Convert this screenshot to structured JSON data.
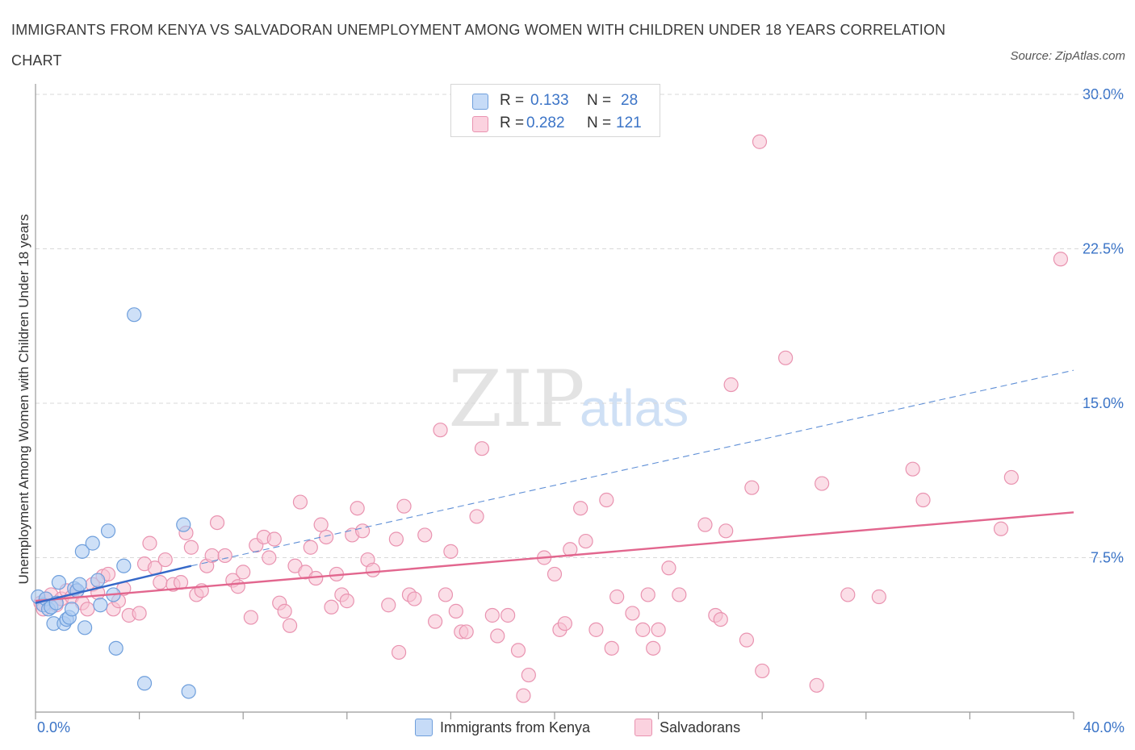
{
  "title": "IMMIGRANTS FROM KENYA VS SALVADORAN UNEMPLOYMENT AMONG WOMEN WITH CHILDREN UNDER 18 YEARS CORRELATION CHART",
  "source": "Source: ZipAtlas.com",
  "watermark": {
    "zip": "ZIP",
    "atlas": "atlas"
  },
  "legend_top": [
    {
      "r_label": "R =",
      "r_value": "0.133",
      "n_label": "N =",
      "n_value": "28"
    },
    {
      "r_label": "R =",
      "r_value": "0.282",
      "n_label": "N =",
      "n_value": "121"
    }
  ],
  "legend_bottom": [
    "Immigrants from Kenya",
    "Salvadorans"
  ],
  "colors": {
    "kenya_fill": "#aecbf2",
    "kenya_stroke": "#6f9fdc",
    "kenya_line": "#3568c8",
    "salv_fill": "#f8c2d3",
    "salv_stroke": "#e993b0",
    "salv_line": "#e2668e",
    "tick_text": "#3b74c7",
    "grid": "#d9d9d9"
  },
  "chart_data": {
    "type": "scatter",
    "title": "IMMIGRANTS FROM KENYA VS SALVADORAN UNEMPLOYMENT AMONG WOMEN WITH CHILDREN UNDER 18 YEARS CORRELATION CHART",
    "xlabel": "",
    "ylabel": "Unemployment Among Women with Children Under 18 years",
    "xlim": [
      0,
      40
    ],
    "ylim": [
      0,
      30
    ],
    "x_tick_labels": [
      "0.0%",
      "40.0%"
    ],
    "y_ticks": [
      7.5,
      15.0,
      22.5,
      30.0
    ],
    "y_tick_labels": [
      "7.5%",
      "15.0%",
      "22.5%",
      "30.0%"
    ],
    "grid": "horizontal dashed",
    "legend_position": "top-center and bottom",
    "series": [
      {
        "name": "Immigrants from Kenya",
        "R": 0.133,
        "N": 28,
        "trend": {
          "x": [
            0,
            6
          ],
          "y": [
            5.3,
            7.1
          ],
          "extended_x": [
            6,
            40
          ],
          "extended_y": [
            7.1,
            16.6
          ]
        },
        "points": [
          [
            0.1,
            5.6
          ],
          [
            0.3,
            5.2
          ],
          [
            0.4,
            5.5
          ],
          [
            0.5,
            5.0
          ],
          [
            0.6,
            5.1
          ],
          [
            0.7,
            4.3
          ],
          [
            0.8,
            5.3
          ],
          [
            0.9,
            6.3
          ],
          [
            1.1,
            4.3
          ],
          [
            1.2,
            4.5
          ],
          [
            1.3,
            4.6
          ],
          [
            1.4,
            5.0
          ],
          [
            1.5,
            6.0
          ],
          [
            1.6,
            5.9
          ],
          [
            1.7,
            6.2
          ],
          [
            1.8,
            7.8
          ],
          [
            1.9,
            4.1
          ],
          [
            2.2,
            8.2
          ],
          [
            2.4,
            6.4
          ],
          [
            2.5,
            5.2
          ],
          [
            2.8,
            8.8
          ],
          [
            3.0,
            5.7
          ],
          [
            3.1,
            3.1
          ],
          [
            3.4,
            7.1
          ],
          [
            3.8,
            19.3
          ],
          [
            4.2,
            1.4
          ],
          [
            5.7,
            9.1
          ],
          [
            5.9,
            1.0
          ]
        ]
      },
      {
        "name": "Salvadorans",
        "R": 0.282,
        "N": 121,
        "trend": {
          "x": [
            0,
            40
          ],
          "y": [
            5.4,
            9.7
          ]
        },
        "points": [
          [
            0.2,
            5.3
          ],
          [
            0.4,
            5.5
          ],
          [
            0.6,
            5.7
          ],
          [
            0.8,
            5.2
          ],
          [
            1.0,
            5.5
          ],
          [
            1.2,
            5.9
          ],
          [
            1.4,
            5.6
          ],
          [
            1.6,
            5.9
          ],
          [
            1.8,
            5.3
          ],
          [
            2.0,
            5.0
          ],
          [
            2.2,
            6.2
          ],
          [
            2.4,
            5.8
          ],
          [
            2.6,
            6.6
          ],
          [
            2.8,
            6.7
          ],
          [
            3.0,
            5.0
          ],
          [
            3.2,
            5.4
          ],
          [
            3.4,
            6.0
          ],
          [
            3.6,
            4.7
          ],
          [
            4.0,
            4.8
          ],
          [
            4.2,
            7.2
          ],
          [
            4.4,
            8.2
          ],
          [
            4.6,
            7.0
          ],
          [
            4.8,
            6.3
          ],
          [
            5.0,
            7.4
          ],
          [
            5.3,
            6.2
          ],
          [
            5.6,
            6.3
          ],
          [
            5.8,
            8.7
          ],
          [
            6.0,
            8.0
          ],
          [
            6.2,
            5.7
          ],
          [
            6.4,
            5.9
          ],
          [
            6.6,
            7.1
          ],
          [
            6.8,
            7.6
          ],
          [
            7.0,
            9.2
          ],
          [
            7.3,
            7.6
          ],
          [
            7.6,
            6.4
          ],
          [
            7.8,
            6.1
          ],
          [
            8.0,
            6.8
          ],
          [
            8.3,
            4.6
          ],
          [
            8.5,
            8.1
          ],
          [
            8.8,
            8.5
          ],
          [
            9.0,
            7.5
          ],
          [
            9.2,
            8.4
          ],
          [
            9.4,
            5.3
          ],
          [
            9.6,
            4.9
          ],
          [
            9.8,
            4.2
          ],
          [
            10.0,
            7.1
          ],
          [
            10.2,
            10.2
          ],
          [
            10.4,
            6.8
          ],
          [
            10.6,
            8.0
          ],
          [
            10.8,
            6.5
          ],
          [
            11.0,
            9.1
          ],
          [
            11.2,
            8.5
          ],
          [
            11.4,
            5.1
          ],
          [
            11.6,
            6.7
          ],
          [
            11.8,
            5.7
          ],
          [
            12.0,
            5.4
          ],
          [
            12.2,
            8.6
          ],
          [
            12.4,
            9.9
          ],
          [
            12.6,
            8.8
          ],
          [
            12.8,
            7.4
          ],
          [
            13.0,
            6.9
          ],
          [
            13.6,
            5.2
          ],
          [
            13.9,
            8.4
          ],
          [
            14.0,
            2.9
          ],
          [
            14.2,
            10.0
          ],
          [
            14.4,
            5.7
          ],
          [
            14.6,
            5.5
          ],
          [
            15.0,
            8.6
          ],
          [
            15.4,
            4.4
          ],
          [
            15.6,
            13.7
          ],
          [
            15.8,
            5.7
          ],
          [
            16.0,
            7.8
          ],
          [
            16.2,
            4.9
          ],
          [
            16.4,
            3.9
          ],
          [
            16.6,
            3.9
          ],
          [
            17.0,
            9.5
          ],
          [
            17.2,
            12.8
          ],
          [
            17.6,
            4.7
          ],
          [
            17.8,
            3.7
          ],
          [
            18.2,
            4.7
          ],
          [
            18.6,
            3.0
          ],
          [
            19.0,
            1.8
          ],
          [
            18.8,
            0.8
          ],
          [
            19.6,
            7.5
          ],
          [
            20.0,
            6.7
          ],
          [
            20.2,
            4.0
          ],
          [
            20.4,
            4.3
          ],
          [
            20.6,
            7.9
          ],
          [
            21.0,
            9.9
          ],
          [
            21.2,
            8.3
          ],
          [
            21.6,
            4.0
          ],
          [
            22.0,
            10.3
          ],
          [
            22.2,
            3.1
          ],
          [
            22.4,
            5.6
          ],
          [
            23.0,
            4.8
          ],
          [
            23.4,
            4.0
          ],
          [
            23.6,
            5.7
          ],
          [
            23.8,
            3.1
          ],
          [
            24.0,
            4.0
          ],
          [
            24.4,
            7.0
          ],
          [
            24.8,
            5.7
          ],
          [
            26.2,
            4.7
          ],
          [
            25.8,
            9.1
          ],
          [
            26.4,
            4.5
          ],
          [
            26.6,
            8.8
          ],
          [
            26.8,
            15.9
          ],
          [
            27.4,
            3.5
          ],
          [
            27.6,
            10.9
          ],
          [
            28.0,
            2.0
          ],
          [
            27.9,
            27.7
          ],
          [
            28.9,
            17.2
          ],
          [
            30.1,
            1.3
          ],
          [
            30.3,
            11.1
          ],
          [
            31.3,
            5.7
          ],
          [
            32.5,
            5.6
          ],
          [
            33.8,
            11.8
          ],
          [
            34.2,
            10.3
          ],
          [
            37.2,
            8.9
          ],
          [
            37.6,
            11.4
          ],
          [
            39.5,
            22.0
          ],
          [
            0.3,
            5.0
          ]
        ]
      }
    ]
  }
}
